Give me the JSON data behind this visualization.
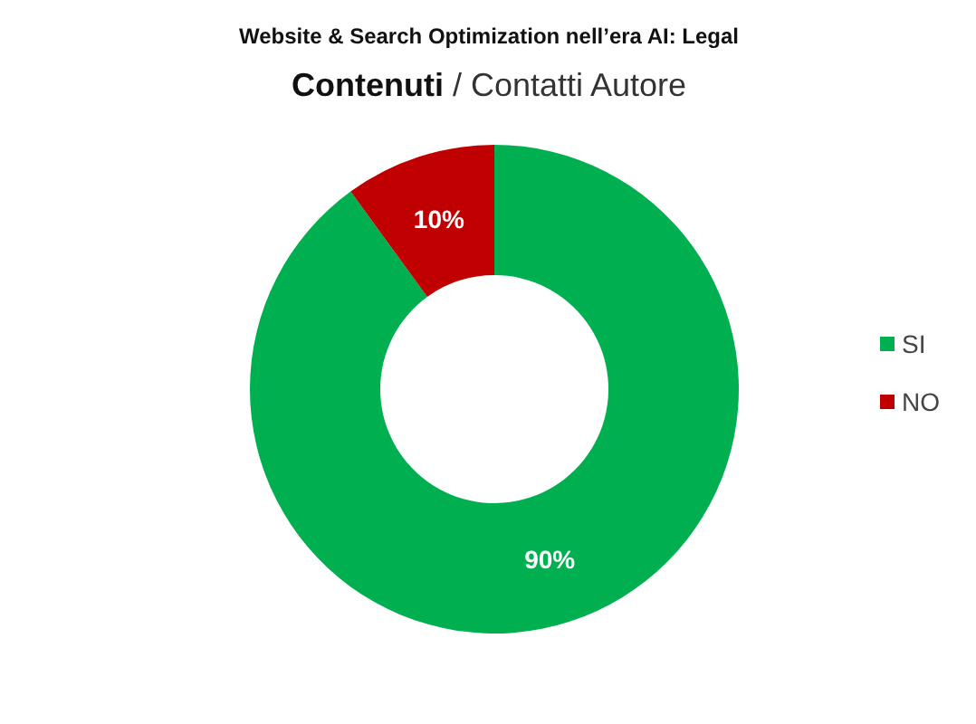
{
  "chart_data": {
    "type": "donut",
    "title": "Website & Search Optimization nell’era AI: Legal",
    "subtitle": "Contenuti / Contatti Autore",
    "categories": [
      "SI",
      "NO"
    ],
    "values": [
      90,
      10
    ],
    "colors": [
      "#00b050",
      "#c00000"
    ],
    "value_labels": [
      "90%",
      "10%"
    ],
    "legend": "right"
  }
}
